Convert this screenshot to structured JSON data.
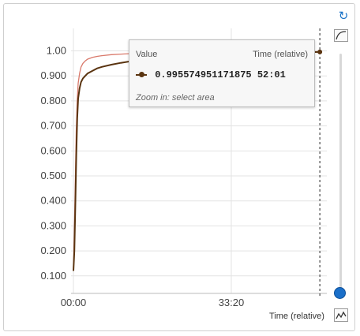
{
  "chart_data": {
    "type": "line",
    "title": "",
    "xlabel": "",
    "ylabel": "",
    "x_unit": "minutes",
    "x_ticks": [
      {
        "label": "00:00",
        "value": 0
      },
      {
        "label": "33:20",
        "value": 33.33
      }
    ],
    "xlim": [
      -0.5,
      53.5
    ],
    "y_ticks": [
      "0.100",
      "0.200",
      "0.300",
      "0.400",
      "0.500",
      "0.600",
      "0.700",
      "0.800",
      "0.900",
      "1.00"
    ],
    "ylim": [
      0.03,
      1.09
    ],
    "grid": true,
    "series": [
      {
        "color": "#d9796b",
        "x": [
          0,
          0.2,
          0.4,
          0.6,
          0.8,
          1.0,
          1.3,
          1.6,
          2,
          2.5,
          3,
          4,
          5,
          6,
          8,
          10,
          12,
          15,
          18,
          21,
          24,
          27,
          30,
          33,
          36,
          40,
          44,
          48,
          52
        ],
        "y": [
          0.12,
          0.28,
          0.48,
          0.68,
          0.8,
          0.87,
          0.91,
          0.935,
          0.95,
          0.96,
          0.967,
          0.974,
          0.978,
          0.981,
          0.985,
          0.987,
          0.989,
          0.991,
          0.992,
          0.993,
          0.994,
          0.995,
          0.995,
          0.996,
          0.996,
          0.997,
          0.997,
          0.997,
          0.997
        ]
      },
      {
        "color": "#5a3410",
        "x": [
          0,
          0.2,
          0.4,
          0.6,
          0.8,
          1.0,
          1.3,
          1.6,
          2,
          2.5,
          3,
          4,
          5,
          6,
          8,
          10,
          12,
          15,
          18,
          21,
          24,
          27,
          30,
          33,
          36,
          40,
          44,
          48,
          52
        ],
        "y": [
          0.12,
          0.2,
          0.38,
          0.58,
          0.73,
          0.81,
          0.85,
          0.875,
          0.89,
          0.9,
          0.91,
          0.92,
          0.93,
          0.936,
          0.945,
          0.952,
          0.958,
          0.965,
          0.97,
          0.974,
          0.978,
          0.982,
          0.985,
          0.987,
          0.989,
          0.991,
          0.993,
          0.994,
          0.9956
        ]
      }
    ],
    "crosshair_x": 52.02
  },
  "tooltip": {
    "value_header": "Value",
    "time_header": "Time (relative)",
    "value": "0.995574951171875",
    "time": "52:01",
    "hint": "Zoom in: select area"
  },
  "controls": {
    "xaxis_mode_label": "Time (relative)",
    "undo_icon": "undo-icon",
    "smoothing_icon": "smoothing-icon",
    "xaxis_icon": "xaxis-type-icon"
  }
}
